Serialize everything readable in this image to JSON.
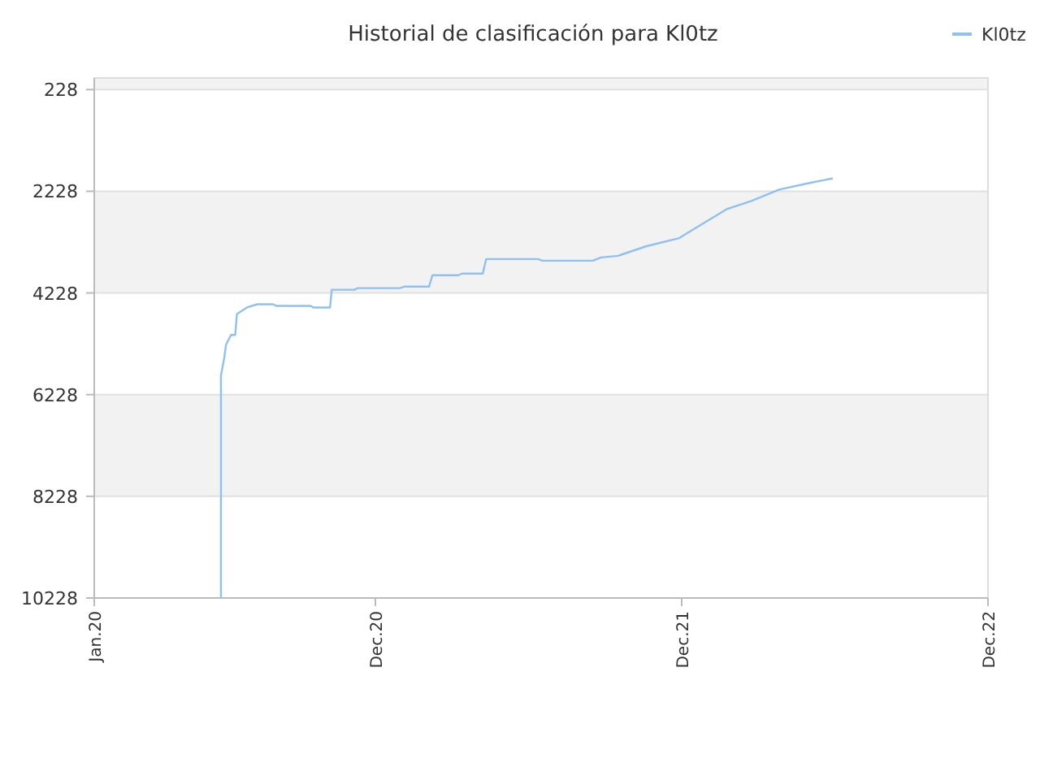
{
  "chart_data": {
    "type": "line",
    "title": "Historial de clasificación para Kl0tz",
    "x": [
      "2020-05-31",
      "2020-05-31",
      "2020-06-04",
      "2020-06-06",
      "2020-06-12",
      "2020-06-17",
      "2020-06-19",
      "2020-07-01",
      "2020-07-13",
      "2020-08-01",
      "2020-08-05",
      "2020-09-15",
      "2020-09-18",
      "2020-10-08",
      "2020-10-10",
      "2020-11-06",
      "2020-11-10",
      "2020-12-30",
      "2021-01-05",
      "2021-02-03",
      "2021-02-07",
      "2021-03-10",
      "2021-03-14",
      "2021-04-08",
      "2021-04-12",
      "2021-06-13",
      "2021-06-18",
      "2021-08-17",
      "2021-08-27",
      "2021-09-16",
      "2021-10-20",
      "2021-11-28",
      "2021-12-17",
      "2022-01-24",
      "2022-02-22",
      "2022-03-27",
      "2022-05-01",
      "2022-05-30"
    ],
    "series": [
      {
        "name": "Kl0tz",
        "color": "#90c0f0",
        "values": [
          10228,
          5848,
          5498,
          5245,
          5054,
          5054,
          4641,
          4514,
          4451,
          4451,
          4483,
          4483,
          4514,
          4514,
          4165,
          4165,
          4133,
          4133,
          4102,
          4102,
          3879,
          3879,
          3847,
          3847,
          3562,
          3562,
          3593,
          3593,
          3530,
          3498,
          3308,
          3149,
          2958,
          2577,
          2419,
          2196,
          2069,
          1974
        ]
      }
    ],
    "xlim": [
      "2020-01-01",
      "2022-12-01"
    ],
    "xticks": [
      {
        "value": "2020-01-01",
        "label": "Jan.20"
      },
      {
        "value": "2020-12-01",
        "label": "Dec.20"
      },
      {
        "value": "2021-12-01",
        "label": "Dec.21"
      },
      {
        "value": "2022-12-01",
        "label": "Dec.22"
      }
    ],
    "ylim": [
      10228,
      0
    ],
    "yticks": [
      228,
      2228,
      4228,
      6228,
      8228,
      10228
    ],
    "grid": "y",
    "legend": "top right",
    "marker": "none",
    "line_style": "solid"
  }
}
